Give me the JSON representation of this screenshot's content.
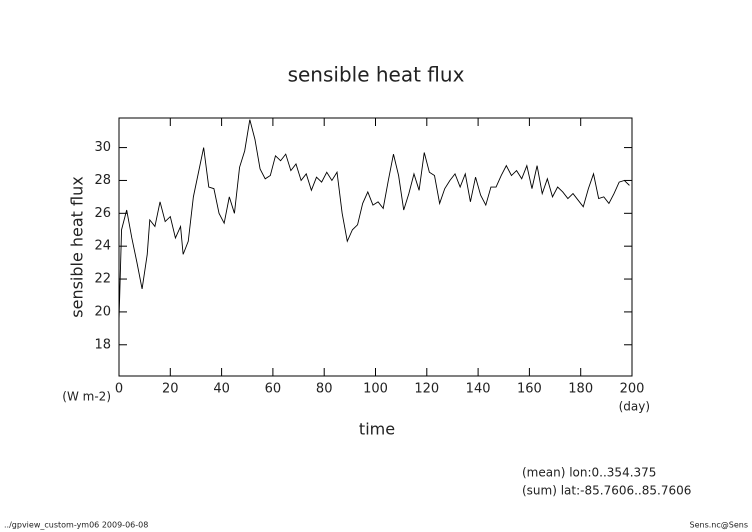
{
  "chart_data": {
    "type": "line",
    "title": "sensible heat flux",
    "y_label": "sensible heat flux",
    "y_unit": "(W m-2)",
    "x_label": "time",
    "x_unit": "(day)",
    "annotations": [
      "(mean) lon:0..354.375",
      "(sum) lat:-85.7606..85.7606"
    ],
    "footer_left": "../gpview_custom-ym06  2009-06-08",
    "footer_right": "Sens.nc@Sens",
    "x": [
      0,
      1,
      3,
      5,
      7,
      9,
      11,
      12,
      14,
      16,
      18,
      20,
      22,
      24,
      25,
      27,
      29,
      31,
      33,
      35,
      37,
      39,
      41,
      43,
      45,
      47,
      49,
      51,
      53,
      55,
      57,
      59,
      61,
      63,
      65,
      67,
      69,
      71,
      73,
      75,
      77,
      79,
      81,
      83,
      85,
      87,
      89,
      91,
      93,
      95,
      97,
      99,
      101,
      103,
      105,
      107,
      109,
      111,
      113,
      115,
      117,
      119,
      121,
      123,
      125,
      127,
      129,
      131,
      133,
      135,
      137,
      139,
      141,
      143,
      145,
      147,
      149,
      151,
      153,
      155,
      157,
      159,
      161,
      163,
      165,
      167,
      169,
      171,
      173,
      175,
      177,
      179,
      181,
      183,
      185,
      187,
      189,
      191,
      193,
      195,
      197,
      199
    ],
    "series": [
      {
        "color": "#000000",
        "values": [
          19.5,
          25,
          26.2,
          24.5,
          23,
          21.4,
          23.5,
          25.6,
          25.2,
          26.7,
          25.5,
          25.8,
          24.5,
          25.2,
          23.5,
          24.3,
          27,
          28.5,
          30,
          27.6,
          27.5,
          26,
          25.4,
          27,
          26,
          28.8,
          29.8,
          31.7,
          30.5,
          28.7,
          28.1,
          28.3,
          29.5,
          29.2,
          29.6,
          28.6,
          29,
          28,
          28.4,
          27.4,
          28.2,
          27.9,
          28.5,
          28,
          28.5,
          26,
          24.3,
          25,
          25.3,
          26.6,
          27.3,
          26.5,
          26.7,
          26.3,
          28,
          29.6,
          28.3,
          26.2,
          27.2,
          28.4,
          27.4,
          29.7,
          28.5,
          28.3,
          26.6,
          27.5,
          28,
          28.4,
          27.6,
          28.4,
          26.7,
          28.2,
          27.1,
          26.5,
          27.6,
          27.6,
          28.3,
          28.9,
          28.3,
          28.6,
          28.1,
          28.9,
          27.5,
          28.9,
          27.2,
          28.1,
          27,
          27.6,
          27.3,
          26.9,
          27.2,
          26.8,
          26.4,
          27.5,
          28.4,
          26.9,
          27,
          26.6,
          27.2,
          27.9,
          28,
          27.7
        ]
      }
    ],
    "xlim": [
      0,
      200
    ],
    "xticks": [
      0,
      20,
      40,
      60,
      80,
      100,
      120,
      140,
      160,
      180,
      200
    ],
    "ylim": [
      16.1,
      31.8
    ],
    "yticks": [
      18,
      20,
      22,
      24,
      26,
      28,
      30
    ]
  }
}
